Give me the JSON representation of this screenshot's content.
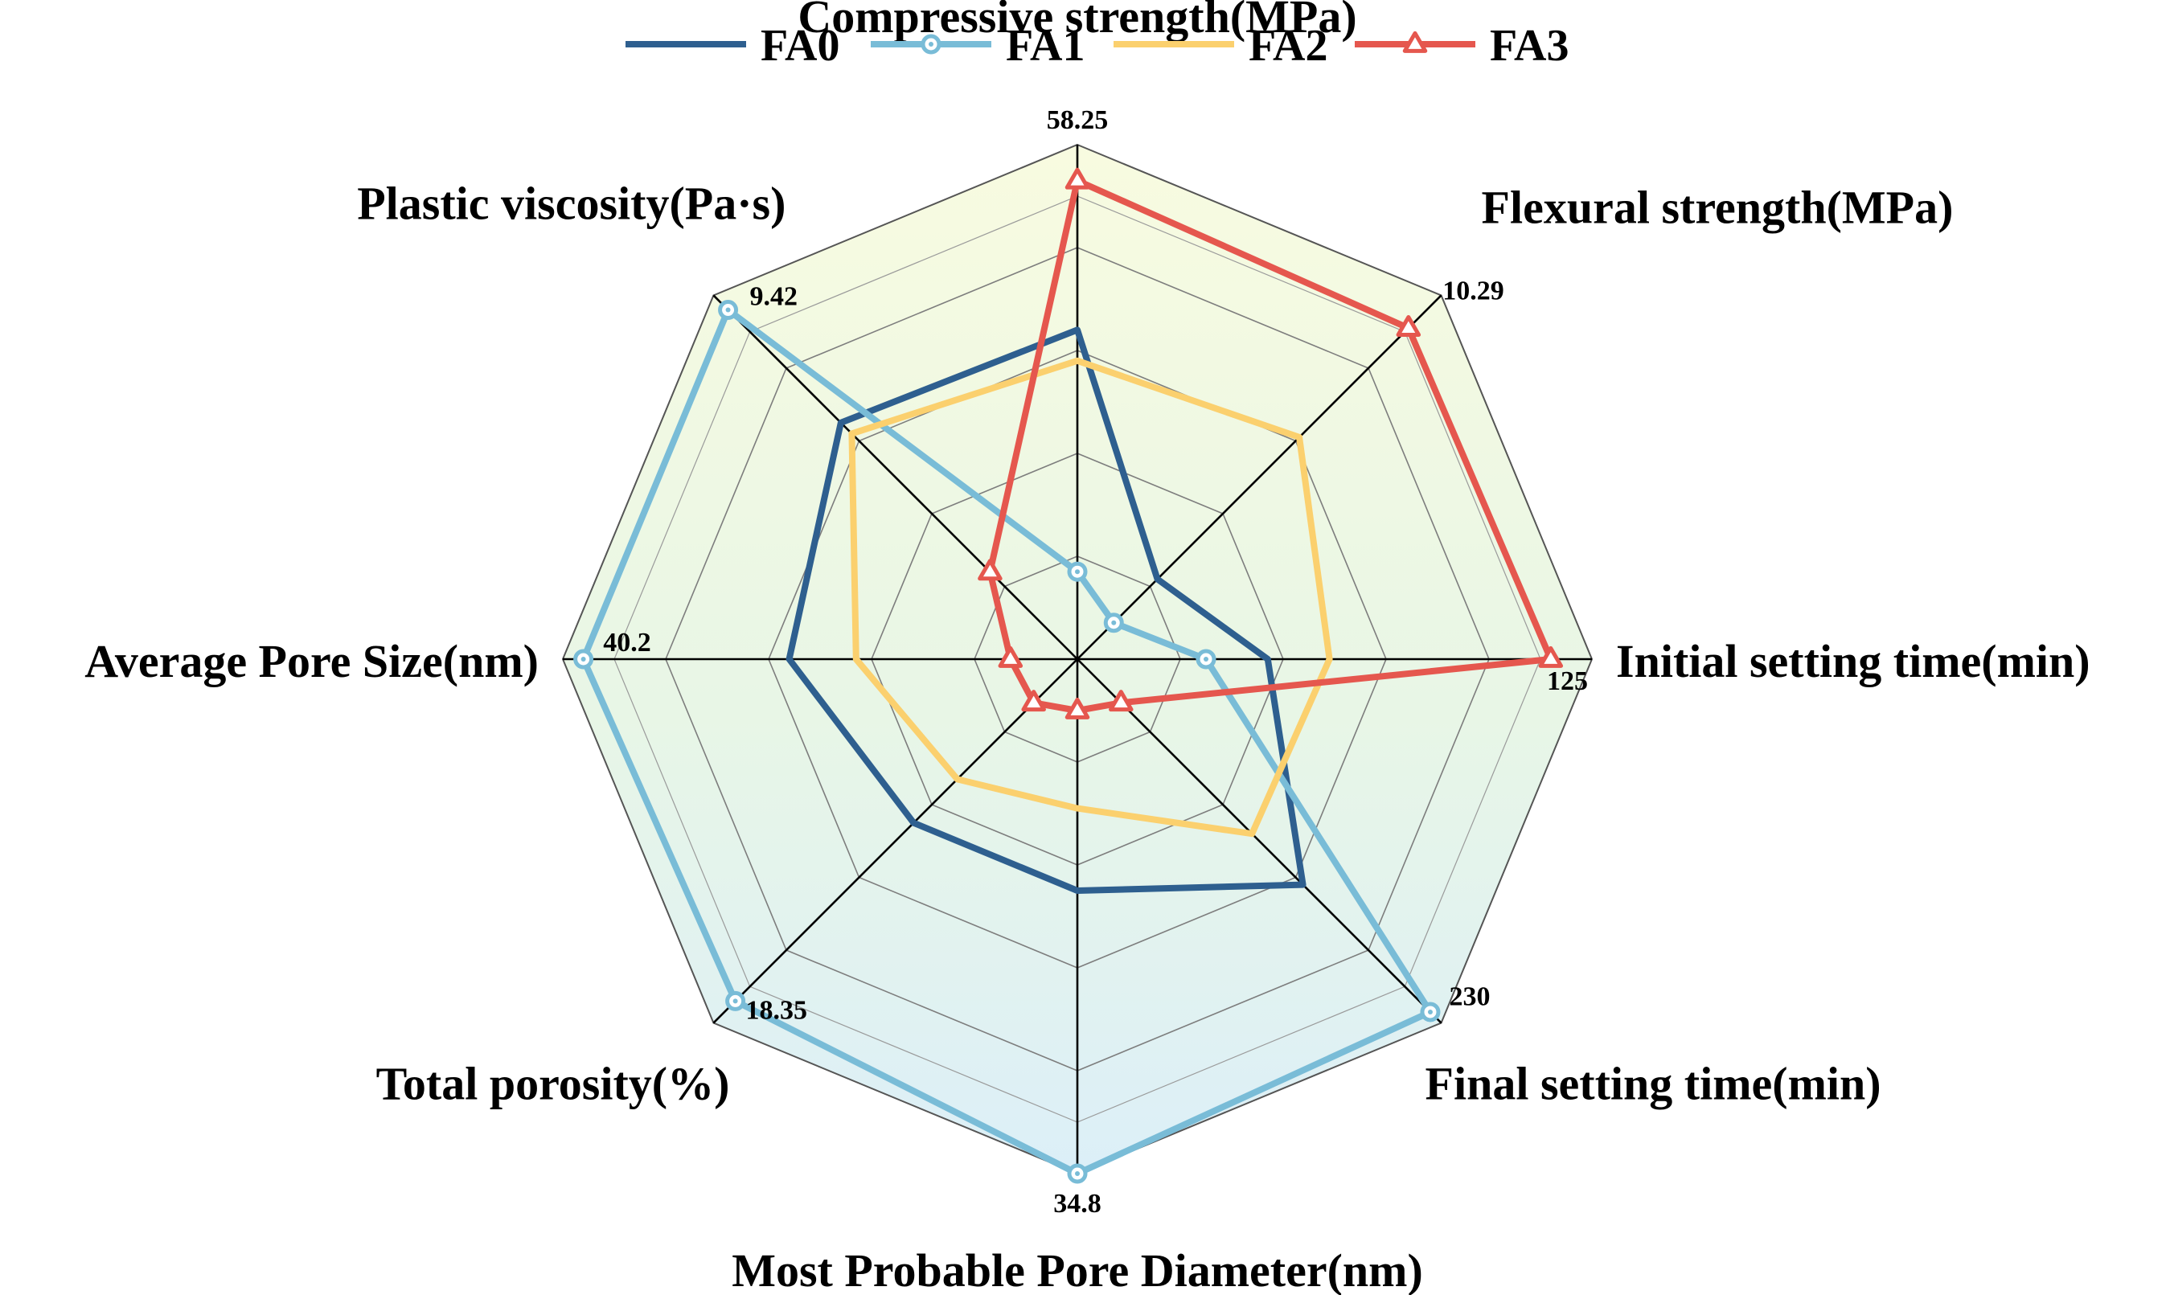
{
  "legend": [
    {
      "name": "FA0",
      "color": "#2E5F8F",
      "marker": "none"
    },
    {
      "name": "FA1",
      "color": "#79BCD7",
      "marker": "circle"
    },
    {
      "name": "FA2",
      "color": "#FBD06E",
      "marker": "none"
    },
    {
      "name": "FA3",
      "color": "#E5574E",
      "marker": "triangle"
    }
  ],
  "chart_data": {
    "type": "radar",
    "title": "",
    "axes": [
      {
        "label": "Compressive strength(MPa)",
        "max_label": "58.25"
      },
      {
        "label": "Flexural strength(MPa)",
        "max_label": "10.29"
      },
      {
        "label": "Initial setting time(min)",
        "max_label": "125"
      },
      {
        "label": "Final setting time(min)",
        "max_label": "230"
      },
      {
        "label": "Most Probable Pore Diameter(nm)",
        "max_label": "34.8"
      },
      {
        "label": "Total porosity(%)",
        "max_label": "18.35"
      },
      {
        "label": "Average Pore Size(nm)",
        "max_label": "40.2"
      },
      {
        "label": "Plastic viscosity(Pa·s)",
        "max_label": "9.42"
      }
    ],
    "rings": 5,
    "series": [
      {
        "name": "FA0",
        "normalized": [
          0.64,
          0.22,
          0.37,
          0.62,
          0.45,
          0.45,
          0.56,
          0.65
        ]
      },
      {
        "name": "FA1",
        "normalized": [
          0.17,
          0.1,
          0.25,
          0.97,
          1.0,
          0.94,
          0.96,
          0.96
        ]
      },
      {
        "name": "FA2",
        "normalized": [
          0.58,
          0.61,
          0.49,
          0.48,
          0.29,
          0.33,
          0.43,
          0.62
        ]
      },
      {
        "name": "FA3",
        "normalized": [
          0.93,
          0.91,
          0.92,
          0.12,
          0.1,
          0.12,
          0.13,
          0.24
        ]
      }
    ],
    "grid": true,
    "legend_position": "top"
  }
}
